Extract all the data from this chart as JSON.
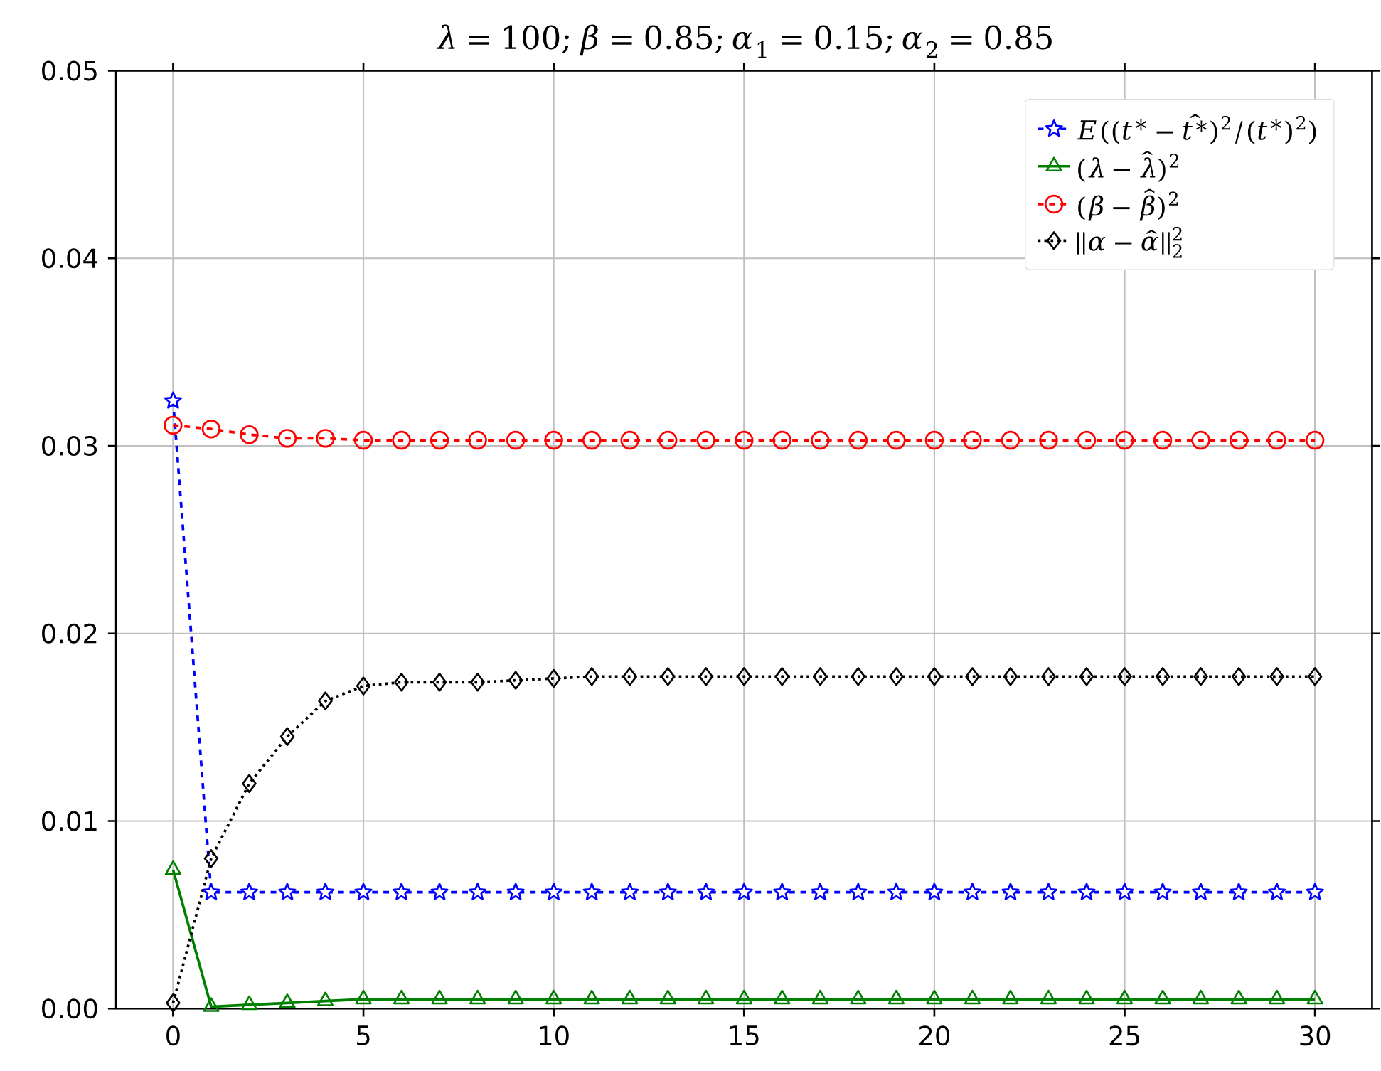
{
  "chart_data": {
    "type": "line",
    "title": "\\lambda=100; \\beta=0.85; \\alpha_1=0.15; \\alpha_2=0.85",
    "x": [
      0,
      1,
      2,
      3,
      4,
      5,
      6,
      7,
      8,
      9,
      10,
      11,
      12,
      13,
      14,
      15,
      16,
      17,
      18,
      19,
      20,
      21,
      22,
      23,
      24,
      25,
      26,
      27,
      28,
      29,
      30
    ],
    "series": [
      {
        "name": "E((t^*-\\hat{t^*})^2/(t^*)^2)",
        "color": "#0000ff",
        "marker": "star",
        "line_style": "dashed",
        "values": [
          0.0324,
          0.0062,
          0.0062,
          0.0062,
          0.0062,
          0.0062,
          0.0062,
          0.0062,
          0.0062,
          0.0062,
          0.0062,
          0.0062,
          0.0062,
          0.0062,
          0.0062,
          0.0062,
          0.0062,
          0.0062,
          0.0062,
          0.0062,
          0.0062,
          0.0062,
          0.0062,
          0.0062,
          0.0062,
          0.0062,
          0.0062,
          0.0062,
          0.0062,
          0.0062,
          0.0062
        ]
      },
      {
        "name": "(\\lambda-\\hat{\\lambda})^2",
        "color": "#008000",
        "marker": "triangle",
        "line_style": "solid",
        "values": [
          0.0074,
          0.0001,
          0.0002,
          0.0003,
          0.0004,
          0.0005,
          0.0005,
          0.0005,
          0.0005,
          0.0005,
          0.0005,
          0.0005,
          0.0005,
          0.0005,
          0.0005,
          0.0005,
          0.0005,
          0.0005,
          0.0005,
          0.0005,
          0.0005,
          0.0005,
          0.0005,
          0.0005,
          0.0005,
          0.0005,
          0.0005,
          0.0005,
          0.0005,
          0.0005,
          0.0005
        ]
      },
      {
        "name": "(\\beta-\\hat{\\beta})^2",
        "color": "#ff0000",
        "marker": "circle",
        "line_style": "dashed",
        "values": [
          0.0311,
          0.0309,
          0.0306,
          0.0304,
          0.0304,
          0.0303,
          0.0303,
          0.0303,
          0.0303,
          0.0303,
          0.0303,
          0.0303,
          0.0303,
          0.0303,
          0.0303,
          0.0303,
          0.0303,
          0.0303,
          0.0303,
          0.0303,
          0.0303,
          0.0303,
          0.0303,
          0.0303,
          0.0303,
          0.0303,
          0.0303,
          0.0303,
          0.0303,
          0.0303,
          0.0303
        ]
      },
      {
        "name": "||\\alpha-\\hat{\\alpha}||_2^2",
        "color": "#000000",
        "marker": "diamond",
        "line_style": "dotted",
        "values": [
          0.0003,
          0.008,
          0.012,
          0.0145,
          0.0164,
          0.0172,
          0.0174,
          0.0174,
          0.0174,
          0.0175,
          0.0176,
          0.0177,
          0.0177,
          0.0177,
          0.0177,
          0.0177,
          0.0177,
          0.0177,
          0.0177,
          0.0177,
          0.0177,
          0.0177,
          0.0177,
          0.0177,
          0.0177,
          0.0177,
          0.0177,
          0.0177,
          0.0177,
          0.0177,
          0.0177
        ]
      }
    ],
    "xlim": [
      -1.5,
      31.5
    ],
    "ylim": [
      0,
      0.05
    ],
    "xticks": [
      0,
      5,
      10,
      15,
      20,
      25,
      30
    ],
    "yticks": [
      {
        "value": 0,
        "label": "0.00"
      },
      {
        "value": 0.01,
        "label": "0.01"
      },
      {
        "value": 0.02,
        "label": "0.02"
      },
      {
        "value": 0.03,
        "label": "0.03"
      },
      {
        "value": 0.04,
        "label": "0.04"
      },
      {
        "value": 0.05,
        "label": "0.05"
      }
    ],
    "grid": true,
    "legend": "top right"
  }
}
